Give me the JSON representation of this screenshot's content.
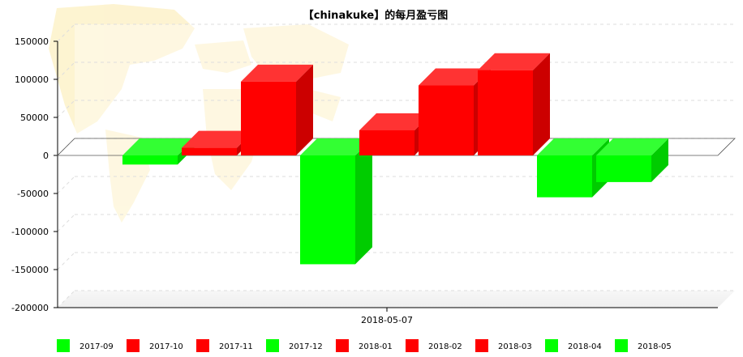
{
  "chart_data": {
    "type": "bar",
    "title": "【chinakuke】的每月盈亏图",
    "categories": [
      "2018-05-07"
    ],
    "series": [
      {
        "name": "2017-09",
        "values": [
          -12000
        ],
        "color": "#00ff00"
      },
      {
        "name": "2017-10",
        "values": [
          10000
        ],
        "color": "#ff0000"
      },
      {
        "name": "2017-11",
        "values": [
          97000
        ],
        "color": "#ff0000"
      },
      {
        "name": "2017-12",
        "values": [
          -143000
        ],
        "color": "#00ff00"
      },
      {
        "name": "2018-01",
        "values": [
          33000
        ],
        "color": "#ff0000"
      },
      {
        "name": "2018-02",
        "values": [
          92000
        ],
        "color": "#ff0000"
      },
      {
        "name": "2018-03",
        "values": [
          112000
        ],
        "color": "#ff0000"
      },
      {
        "name": "2018-04",
        "values": [
          -55000
        ],
        "color": "#00ff00"
      },
      {
        "name": "2018-05",
        "values": [
          -35000
        ],
        "color": "#00ff00"
      }
    ],
    "y_ticks": [
      "150000",
      "100000",
      "50000",
      "0",
      "-50000",
      "-100000",
      "-150000",
      "-200000"
    ],
    "ylim": [
      -200000,
      150000
    ],
    "xlabel": "",
    "ylabel": "",
    "grid": true,
    "legend_position": "bottom",
    "colors": {
      "profit": "#ff0000",
      "loss": "#00ff00"
    }
  }
}
